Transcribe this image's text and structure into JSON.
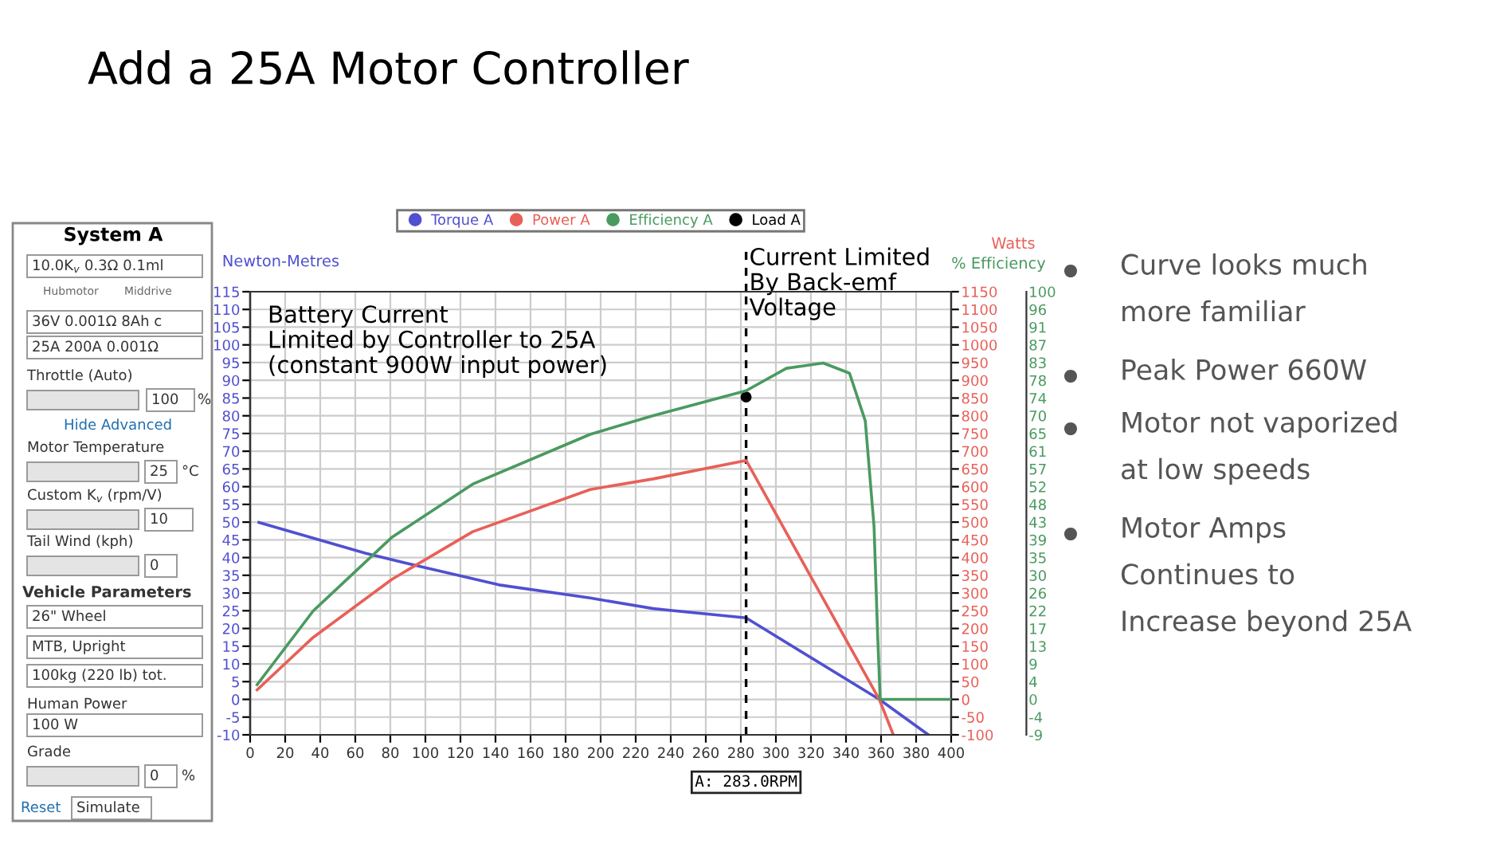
{
  "chart_data": [
    {
      "type": "line",
      "title": "Add a 25A Motor Controller",
      "ylabel": "Newton-Metres",
      "y2label": "Watts",
      "y3label": "% Efficiency",
      "xlim": [
        0,
        400
      ],
      "xticks": [
        0,
        20,
        40,
        60,
        80,
        100,
        120,
        140,
        160,
        180,
        200,
        220,
        240,
        260,
        280,
        300,
        320,
        340,
        360,
        380,
        400
      ],
      "ylim": [
        -10,
        115
      ],
      "yticks": [
        -10,
        -5,
        0,
        5,
        10,
        15,
        20,
        25,
        30,
        35,
        40,
        45,
        50,
        55,
        60,
        65,
        70,
        75,
        80,
        85,
        90,
        95,
        100,
        105,
        110,
        115
      ],
      "y2lim": [
        -100,
        1150
      ],
      "y2ticks": [
        -100,
        -50,
        0,
        50,
        100,
        150,
        200,
        250,
        300,
        350,
        400,
        450,
        500,
        550,
        600,
        650,
        700,
        750,
        800,
        850,
        900,
        950,
        1000,
        1050,
        1100,
        1150
      ],
      "y3lim": [
        -8.7,
        100
      ],
      "y3ticks": [
        {
          "value": -8.7,
          "label": "-9"
        },
        {
          "value": -4.35,
          "label": "-4"
        },
        0,
        {
          "value": 4.35,
          "label": "4"
        },
        {
          "value": 8.7,
          "label": "9"
        },
        {
          "value": 13.04,
          "label": "13"
        },
        {
          "value": 17.39,
          "label": "17"
        },
        {
          "value": 21.74,
          "label": "22"
        },
        {
          "value": 26.09,
          "label": "26"
        },
        {
          "value": 30.43,
          "label": "30"
        },
        {
          "value": 34.78,
          "label": "35"
        },
        {
          "value": 39.13,
          "label": "39"
        },
        {
          "value": 43.48,
          "label": "43"
        },
        {
          "value": 47.83,
          "label": "48"
        },
        {
          "value": 52.17,
          "label": "52"
        },
        {
          "value": 56.52,
          "label": "57"
        },
        {
          "value": 60.87,
          "label": "61"
        },
        {
          "value": 65.22,
          "label": "65"
        },
        {
          "value": 69.57,
          "label": "70"
        },
        {
          "value": 73.91,
          "label": "74"
        },
        {
          "value": 78.26,
          "label": "78"
        },
        {
          "value": 82.61,
          "label": "83"
        },
        {
          "value": 86.96,
          "label": "87"
        },
        {
          "value": 91.3,
          "label": "91"
        },
        {
          "value": 95.65,
          "label": "96"
        },
        100
      ],
      "grid": true,
      "legend": "top",
      "ref_lines": [
        {
          "axis": "x",
          "value": 283,
          "label": "A: 283.0RPM",
          "color": "#000000",
          "line_style": "dashed"
        }
      ],
      "annotations": [
        "Battery Current\nLimited by Controller to 25A\n(constant 900W input power)",
        "Current Limited\nBy Back-emf\nVoltage"
      ],
      "series": [
        {
          "name": "Torque A",
          "type": "line",
          "color": "#5050d0",
          "x": [
            5,
            66,
            97,
            142,
            194,
            230,
            283,
            359,
            387
          ],
          "values": [
            49.9,
            41.2,
            37.5,
            32.3,
            28.6,
            25.6,
            23,
            0,
            -10
          ]
        },
        {
          "name": "Power A",
          "type": "line",
          "axis": "y2",
          "color": "#e86058",
          "x": [
            4,
            36,
            81,
            127,
            194,
            230,
            283,
            359,
            367
          ],
          "values": [
            27,
            175,
            339,
            473,
            592,
            622,
            674,
            0,
            -100
          ]
        },
        {
          "name": "Efficiency A",
          "type": "line",
          "axis": "y3",
          "color": "#4a9a60",
          "x": [
            4,
            36,
            81,
            127,
            194,
            230,
            283,
            306,
            327,
            342,
            351,
            356,
            358,
            359.5,
            400
          ],
          "values": [
            3.6,
            21.7,
            39.8,
            52.8,
            65,
            69.6,
            75.7,
            81.2,
            82.5,
            80,
            68.3,
            42.4,
            16.5,
            0,
            0
          ]
        },
        {
          "name": "Load A",
          "type": "scatter",
          "axis": "y2",
          "color": "#000000",
          "marker": "circle",
          "x": [
            283
          ],
          "values": [
            853
          ]
        }
      ]
    },
    {
      "type": "other",
      "title": "System A",
      "annotations": [
        "10.0K$_{v}$ 0.3Ω 0.1ml",
        "Hubmotor",
        "Middrive",
        "36V 0.001Ω 8Ah c",
        "25A 200A 0.001Ω",
        "Throttle (Auto)",
        "100",
        "%",
        "Hide Advanced",
        "Motor Temperature",
        "25",
        "°C",
        "Custom K$_{v}$ (rpm/V)",
        "10",
        "Tail Wind (kph)",
        "0",
        "Vehicle Parameters",
        "26\" Wheel",
        "MTB, Upright",
        "100kg (220 lb) tot.",
        "Human Power",
        "100 W",
        "Grade",
        "0",
        "%",
        "Reset",
        "Simulate"
      ]
    },
    {
      "type": "other",
      "annotations": [
        "Curve looks much\nmore familiar",
        "Peak Power 660W",
        "Motor not vaporized\nat low speeds",
        "Motor Amps\nContinues to\nIncrease beyond 25A"
      ]
    }
  ]
}
